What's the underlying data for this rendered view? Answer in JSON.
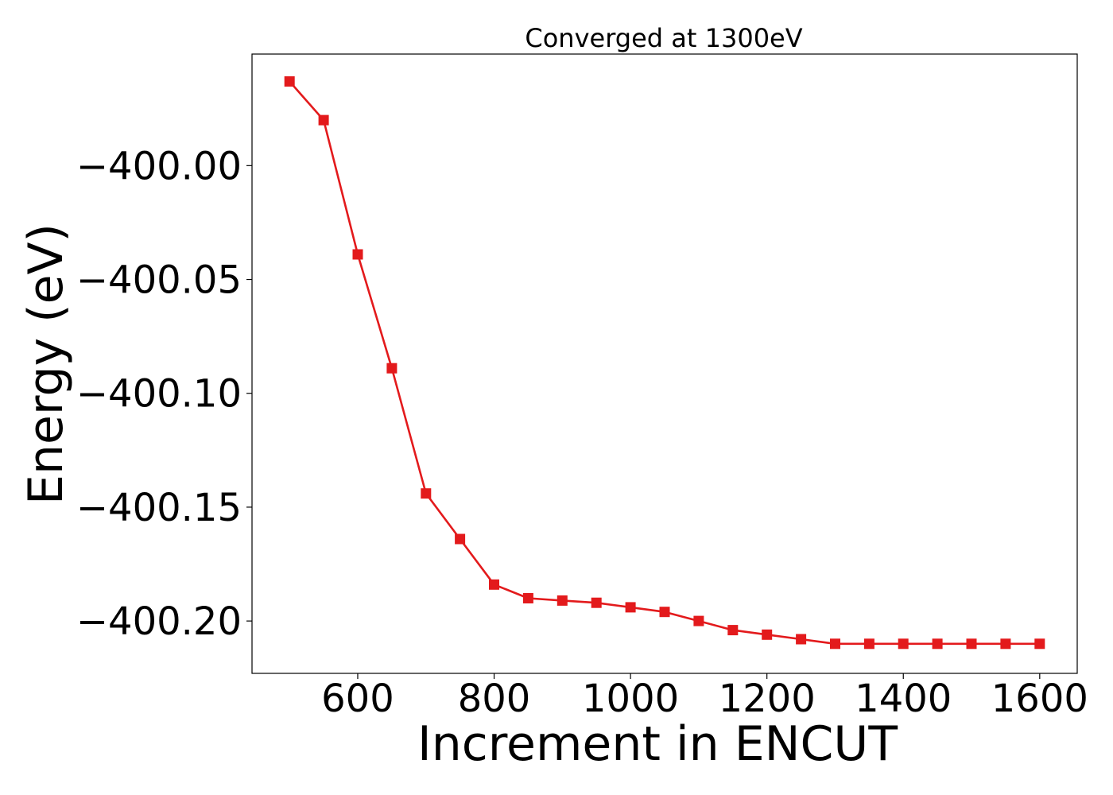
{
  "chart_data": {
    "type": "line",
    "title": "Converged at 1300eV",
    "xlabel": "Increment in ENCUT",
    "ylabel": "Energy (eV)",
    "xlim": [
      445,
      1655
    ],
    "ylim": [
      -400.223,
      -399.951
    ],
    "xticks": [
      600,
      800,
      1000,
      1200,
      1400,
      1600
    ],
    "xtick_labels": [
      "600",
      "800",
      "1000",
      "1200",
      "1400",
      "1600"
    ],
    "yticks": [
      -400.0,
      -400.05,
      -400.1,
      -400.15,
      -400.2
    ],
    "ytick_labels": [
      "−400.00",
      "−400.05",
      "−400.10",
      "−400.15",
      "−400.20"
    ],
    "grid": false,
    "series": [
      {
        "color": "#e31a1c",
        "marker": "square",
        "x": [
          500,
          550,
          600,
          650,
          700,
          750,
          800,
          850,
          900,
          950,
          1000,
          1050,
          1100,
          1150,
          1200,
          1250,
          1300,
          1350,
          1400,
          1450,
          1500,
          1550,
          1600
        ],
        "y": [
          -399.963,
          -399.98,
          -400.039,
          -400.089,
          -400.144,
          -400.164,
          -400.184,
          -400.19,
          -400.191,
          -400.192,
          -400.194,
          -400.196,
          -400.2,
          -400.204,
          -400.206,
          -400.208,
          -400.21,
          -400.21,
          -400.21,
          -400.21,
          -400.21,
          -400.21,
          -400.21
        ]
      }
    ]
  }
}
